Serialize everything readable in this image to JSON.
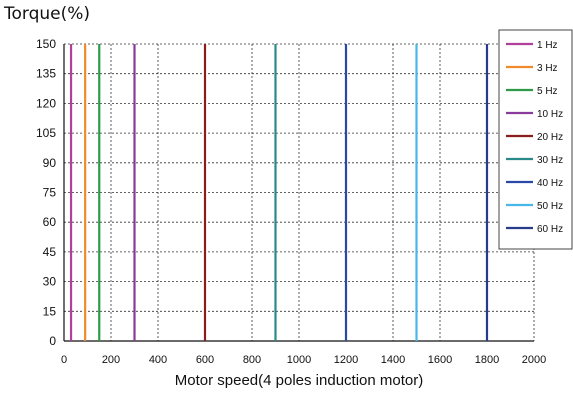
{
  "chart_data": {
    "type": "line",
    "xlabel": "Motor speed(4 poles induction motor)",
    "ylabel": "Torque(%)",
    "xlim": [
      0,
      2000
    ],
    "ylim": [
      0,
      150
    ],
    "xticks": [
      0,
      200,
      400,
      600,
      800,
      1000,
      1200,
      1400,
      1600,
      1800,
      2000
    ],
    "yticks": [
      0,
      15,
      30,
      45,
      60,
      75,
      90,
      105,
      120,
      135,
      150
    ],
    "grid": true,
    "legend_position": "top-right",
    "series": [
      {
        "name": "1 Hz",
        "color": "#b0409a",
        "x": [
          30,
          30
        ],
        "y": [
          0,
          150
        ]
      },
      {
        "name": "3 Hz",
        "color": "#f08a2c",
        "x": [
          90,
          90
        ],
        "y": [
          0,
          150
        ]
      },
      {
        "name": "5 Hz",
        "color": "#2e9a48",
        "x": [
          150,
          150
        ],
        "y": [
          0,
          150
        ]
      },
      {
        "name": "10 Hz",
        "color": "#8a3a9a",
        "x": [
          300,
          300
        ],
        "y": [
          0,
          150
        ]
      },
      {
        "name": "20 Hz",
        "color": "#8a1c1c",
        "x": [
          600,
          600
        ],
        "y": [
          0,
          150
        ]
      },
      {
        "name": "30 Hz",
        "color": "#2a8a8a",
        "x": [
          900,
          900
        ],
        "y": [
          0,
          150
        ]
      },
      {
        "name": "40 Hz",
        "color": "#2a48a8",
        "x": [
          1200,
          1200
        ],
        "y": [
          0,
          150
        ]
      },
      {
        "name": "50 Hz",
        "color": "#48b8e8",
        "x": [
          1500,
          1500
        ],
        "y": [
          0,
          150
        ]
      },
      {
        "name": "60 Hz",
        "color": "#283a8a",
        "x": [
          1800,
          1800
        ],
        "y": [
          0,
          150
        ]
      }
    ]
  }
}
